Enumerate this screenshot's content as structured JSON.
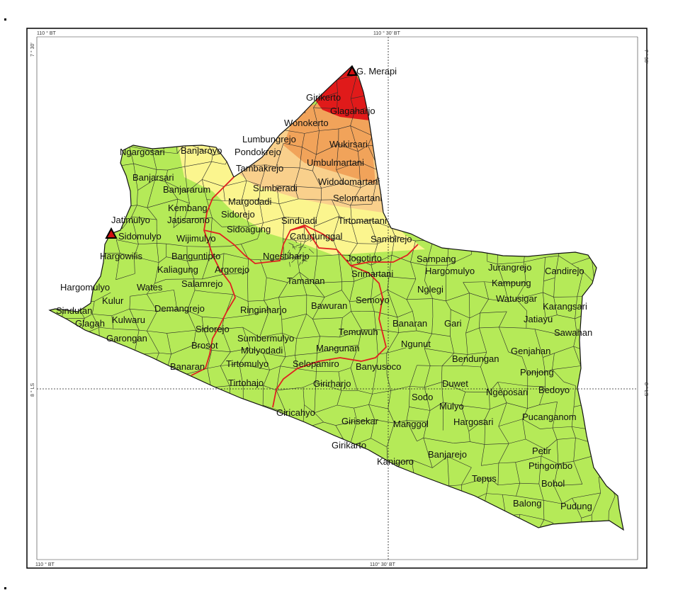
{
  "colors": {
    "lowland": "#b5ea58",
    "zone_yellow": "#fbf58e",
    "zone_light_orange": "#f9d08c",
    "zone_orange": "#f1a35a",
    "zone_red": "#e01a1a",
    "regency_border": "#e02020",
    "desa_border": "#2a2a2a",
    "frame": "#000000"
  },
  "coords": {
    "top_left_lon": "110 ° BT",
    "top_mid_lon": "110 ° 30' BT",
    "bottom_left_lon": "110 ° BT",
    "bottom_mid_lon": "110° 30' BT",
    "left_top_lat": "7 ° 30'",
    "right_top_lat": "7 ° 30'",
    "left_mid_lat": "8 ° LS",
    "right_mid_lat": "8 ° LS"
  },
  "volcanoes": [
    {
      "name": "G. Merapi",
      "icon": "volcano-triangle-icon"
    },
    {
      "name": "",
      "icon": "volcano-triangle-icon"
    }
  ],
  "places": [
    "G. Merapi",
    "Girikerto",
    "Glagaharjo",
    "Wonokerto",
    "Lumbungrejo",
    "Pondokrejo",
    "Wukirsari",
    "Umbulmartani",
    "Tambakrejo",
    "Ngargosari",
    "Banjaroyo",
    "Banjarsari",
    "Banjararum",
    "Sumberadi",
    "Widodomartani",
    "Margodadi",
    "Selomartani",
    "Kembang",
    "Sidorejo",
    "Jatimulyo",
    "Jatisarono",
    "Sinduadi",
    "Tirtomartani",
    "Sidoagung",
    "Caturtunggal",
    "Sidomulyo",
    "Wijimulyo",
    "Sambirejo",
    "Hargowilis",
    "Banguntipto",
    "Ngestiharjo",
    "Jogotirto",
    "Sampang",
    "Kaliagung",
    "Argorejo",
    "Hargomulyo",
    "Jurangrejo",
    "Candirejo",
    "Salamrejo",
    "Srimartani",
    "Kampung",
    "Hargomulyo",
    "Wates",
    "Tamanan",
    "Nglegi",
    "Watusigar",
    "Kulur",
    "Sindutan",
    "Demangrejo",
    "Ringinharjo",
    "Bawuran",
    "Semoyo",
    "Karangsari",
    "Glagah",
    "Kulwaru",
    "Banaran",
    "Gari",
    "Jatiayu",
    "Sidorejo",
    "Temuwuh",
    "Sawahan",
    "Garongan",
    "Sumbermulyo",
    "Ngunut",
    "Mulyodadi",
    "Mangunan",
    "Genjahan",
    "Brosot",
    "Bendungan",
    "Banaran",
    "Tirtomulyo",
    "Selopamiro",
    "Banyusoco",
    "Ponjong",
    "Tirtohajo",
    "Girirharjo",
    "Duwet",
    "Ngeposari",
    "Bedoyo",
    "Sodo",
    "Giricahyo",
    "Mulyo",
    "Pucanganom",
    "Girisekar",
    "Manggol",
    "Hargosari",
    "Girikarto",
    "Petir",
    "Banjarejo",
    "Kanigoro",
    "Ptingombo",
    "Tepus",
    "Bohol",
    "Balong",
    "Pudung"
  ]
}
